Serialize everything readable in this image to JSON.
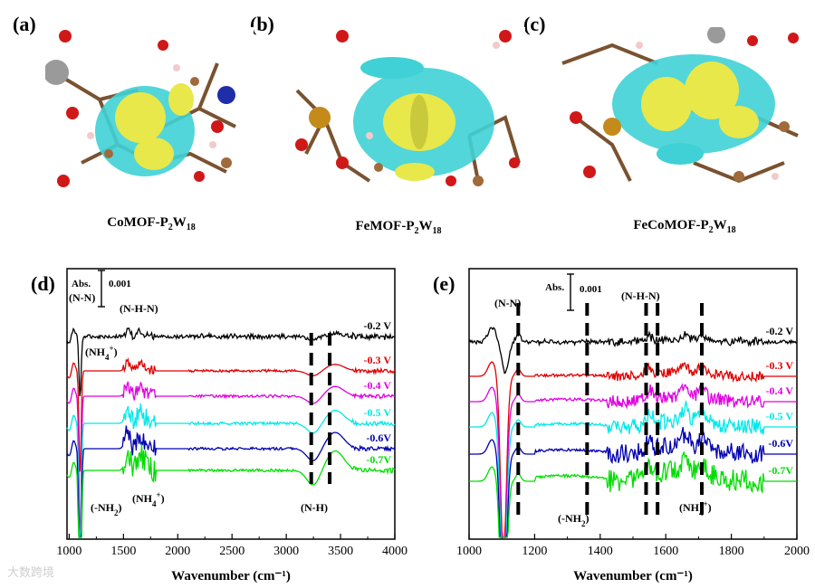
{
  "panels": {
    "a": {
      "label": "(a)",
      "caption_main": "CoMOF-P",
      "caption_sub1": "2",
      "caption_mid": "W",
      "caption_sub2": "18"
    },
    "b": {
      "label": "(b)",
      "caption_main": "FeMOF-P",
      "caption_sub1": "2",
      "caption_mid": "W",
      "caption_sub2": "18"
    },
    "c": {
      "label": "(c)",
      "caption_main": "FeCoMOF-P",
      "caption_sub1": "2",
      "caption_mid": "W",
      "caption_sub2": "18"
    }
  },
  "watermark": "大数跨境",
  "chart_data": [
    {
      "type": "line",
      "panel_label": "(d)",
      "xlabel": "Wavenumber (cm⁻¹)",
      "xlim": [
        980,
        4000
      ],
      "xticks": [
        1000,
        1500,
        2000,
        2500,
        3000,
        3500,
        4000
      ],
      "scale_bar": {
        "label_top": "Abs.",
        "value": "0.001"
      },
      "series": [
        {
          "name": "-0.2 V",
          "color": "#000000"
        },
        {
          "name": "-0.3 V",
          "color": "#e00000"
        },
        {
          "name": "-0.4 V",
          "color": "#e000e0"
        },
        {
          "name": "-0.5 V",
          "color": "#00e8e8"
        },
        {
          "name": "-0.6V",
          "color": "#0000b0"
        },
        {
          "name": "-0.7V",
          "color": "#00dd00"
        }
      ],
      "annotations": [
        {
          "text": "(N-N)",
          "x": 1040
        },
        {
          "text": "(NH4+)",
          "x": 1150
        },
        {
          "text": "(N-H-N)",
          "x": 1560
        },
        {
          "text": "(-NH2)",
          "x": 1120
        },
        {
          "text": "(NH4+)",
          "x": 1570
        },
        {
          "text": "(N-H)",
          "x": 3300
        }
      ],
      "dashed_markers": [
        3230,
        3400
      ]
    },
    {
      "type": "line",
      "panel_label": "(e)",
      "xlabel": "Wavenumber (cm⁻¹)",
      "xlim": [
        1000,
        2000
      ],
      "xticks": [
        1000,
        1200,
        1400,
        1600,
        1800,
        2000
      ],
      "scale_bar": {
        "label_top": "Abs.",
        "value": "0.001"
      },
      "series": [
        {
          "name": "-0.2 V",
          "color": "#000000"
        },
        {
          "name": "-0.3 V",
          "color": "#e00000"
        },
        {
          "name": "-0.4 V",
          "color": "#e000e0"
        },
        {
          "name": "-0.5 V",
          "color": "#00e8e8"
        },
        {
          "name": "-0.6V",
          "color": "#0000b0"
        },
        {
          "name": "-0.7V",
          "color": "#00dd00"
        }
      ],
      "annotations": [
        {
          "text": "(N-N)",
          "x": 1130
        },
        {
          "text": "(N-H-N)",
          "x": 1560
        },
        {
          "text": "(-NH2)",
          "x": 1350
        },
        {
          "text": "(NH4+)",
          "x": 1710
        }
      ],
      "dashed_markers": [
        1150,
        1360,
        1540,
        1575,
        1710
      ]
    }
  ]
}
